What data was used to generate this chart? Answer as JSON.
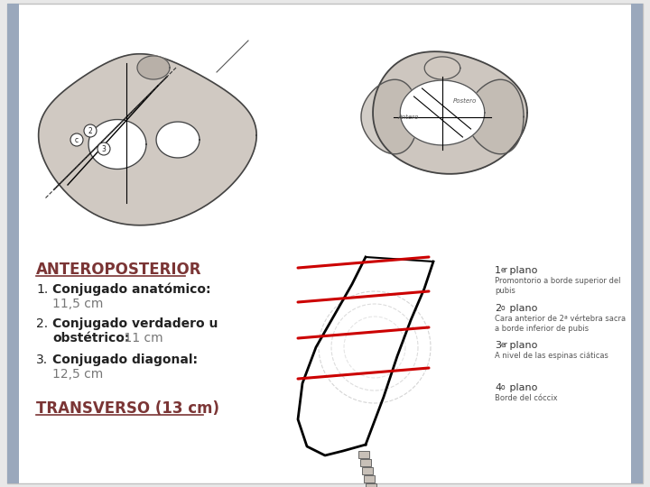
{
  "background_color": "#e8e8e8",
  "slide_bg": "#ffffff",
  "title_anteroposterior": "ANTEROPOSTERIOR",
  "title_color": "#7b3535",
  "transverso_text": "TRANSVERSO (13 cm)",
  "transverso_color": "#7b3535",
  "right_panel_labels": [
    {
      "superscript": "er",
      "num": "1",
      "title": " plano",
      "desc": "Promontorio a borde superior del\npubis"
    },
    {
      "superscript": "o",
      "num": "2",
      "title": " plano",
      "desc": "Cara anterior de 2ª vértebra sacra\na borde inferior de pubis"
    },
    {
      "superscript": "er",
      "num": "3",
      "title": " plano",
      "desc": "A nivel de las espinas ciáticas"
    },
    {
      "superscript": "o",
      "num": "4",
      "title": " plano",
      "desc": "Borde del cóccix"
    }
  ],
  "font_size_title": 12,
  "font_size_items": 10,
  "font_size_transverso": 12,
  "font_size_right": 7,
  "red_line_color": "#cc0000",
  "border_color": "#c0c0c0",
  "left_bar_color": "#9aa8bc",
  "right_bar_color": "#9aa8bc"
}
